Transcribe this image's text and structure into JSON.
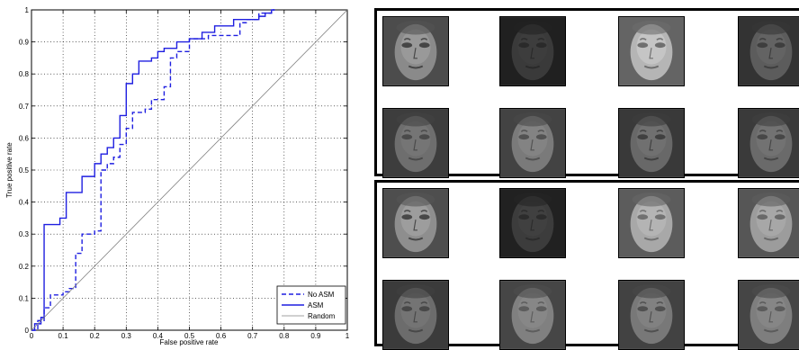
{
  "chart_data": {
    "type": "line",
    "title": "",
    "xlabel": "False positive rate",
    "ylabel": "True positive rate",
    "xlim": [
      0,
      1
    ],
    "ylim": [
      0,
      1
    ],
    "xticks": [
      "0",
      "0.1",
      "0.2",
      "0.3",
      "0.4",
      "0.5",
      "0.6",
      "0.7",
      "0.8",
      "0.9",
      "1"
    ],
    "yticks": [
      "0",
      "0.1",
      "0.2",
      "0.3",
      "0.4",
      "0.5",
      "0.6",
      "0.7",
      "0.8",
      "0.9",
      "1"
    ],
    "grid": true,
    "legend_position": "bottom-right",
    "series": [
      {
        "name": "No ASM",
        "color": "#1f1fe0",
        "style": "dashed",
        "x": [
          0,
          0.02,
          0.02,
          0.04,
          0.04,
          0.06,
          0.06,
          0.1,
          0.1,
          0.12,
          0.12,
          0.14,
          0.14,
          0.16,
          0.16,
          0.2,
          0.2,
          0.22,
          0.22,
          0.24,
          0.24,
          0.26,
          0.26,
          0.28,
          0.28,
          0.3,
          0.3,
          0.32,
          0.32,
          0.36,
          0.36,
          0.38,
          0.38,
          0.42,
          0.42,
          0.44,
          0.44,
          0.46,
          0.46,
          0.5,
          0.5,
          0.56,
          0.56,
          0.66,
          0.66,
          0.68,
          0.68,
          0.72,
          0.72,
          0.76,
          0.76,
          0.77
        ],
        "y": [
          0,
          0,
          0.03,
          0.03,
          0.07,
          0.07,
          0.11,
          0.11,
          0.12,
          0.12,
          0.13,
          0.13,
          0.24,
          0.24,
          0.3,
          0.3,
          0.31,
          0.31,
          0.5,
          0.5,
          0.52,
          0.52,
          0.54,
          0.54,
          0.58,
          0.58,
          0.63,
          0.63,
          0.68,
          0.68,
          0.69,
          0.69,
          0.72,
          0.72,
          0.76,
          0.76,
          0.85,
          0.85,
          0.87,
          0.87,
          0.91,
          0.91,
          0.92,
          0.92,
          0.96,
          0.96,
          0.97,
          0.97,
          0.99,
          0.99,
          1.0,
          1.0
        ]
      },
      {
        "name": "ASM",
        "color": "#1f1fe0",
        "style": "solid",
        "x": [
          0,
          0.01,
          0.01,
          0.03,
          0.03,
          0.04,
          0.04,
          0.09,
          0.09,
          0.11,
          0.11,
          0.16,
          0.16,
          0.2,
          0.2,
          0.22,
          0.22,
          0.24,
          0.24,
          0.26,
          0.26,
          0.28,
          0.28,
          0.3,
          0.3,
          0.32,
          0.32,
          0.34,
          0.34,
          0.38,
          0.38,
          0.4,
          0.4,
          0.42,
          0.42,
          0.46,
          0.46,
          0.5,
          0.5,
          0.54,
          0.54,
          0.58,
          0.58,
          0.64,
          0.64,
          0.72,
          0.72,
          0.74,
          0.74,
          0.76,
          0.76,
          0.77
        ],
        "y": [
          0,
          0,
          0.02,
          0.02,
          0.04,
          0.04,
          0.33,
          0.33,
          0.35,
          0.35,
          0.43,
          0.43,
          0.48,
          0.48,
          0.52,
          0.52,
          0.55,
          0.55,
          0.57,
          0.57,
          0.6,
          0.6,
          0.67,
          0.67,
          0.77,
          0.77,
          0.8,
          0.8,
          0.84,
          0.84,
          0.85,
          0.85,
          0.87,
          0.87,
          0.88,
          0.88,
          0.9,
          0.9,
          0.91,
          0.91,
          0.93,
          0.93,
          0.95,
          0.95,
          0.97,
          0.97,
          0.98,
          0.98,
          0.99,
          0.99,
          1.0,
          1.0
        ]
      },
      {
        "name": "Random",
        "color": "#808080",
        "style": "solid",
        "x": [
          0,
          1
        ],
        "y": [
          0,
          1
        ]
      }
    ]
  },
  "faces": {
    "top": [
      {
        "name": "face-mean",
        "tone": "#8a8a8a",
        "contrast": 0.9
      },
      {
        "name": "face-dark",
        "tone": "#3a3a3a",
        "contrast": 0.5
      },
      {
        "name": "face-light",
        "tone": "#b5b5b5",
        "contrast": 0.7
      },
      {
        "name": "face-gray",
        "tone": "#5c5c5c",
        "contrast": 0.6
      },
      {
        "name": "face-gray",
        "tone": "#6e6e6e",
        "contrast": 0.6
      },
      {
        "name": "face-gray",
        "tone": "#7a7a7a",
        "contrast": 0.6
      },
      {
        "name": "face-gray",
        "tone": "#686868",
        "contrast": 0.7
      },
      {
        "name": "face-gray",
        "tone": "#6a6a6a",
        "contrast": 0.6
      }
    ],
    "bottom": [
      {
        "name": "face-mean",
        "tone": "#8e8e8e",
        "contrast": 0.9
      },
      {
        "name": "face-dark",
        "tone": "#3c3c3c",
        "contrast": 0.5
      },
      {
        "name": "face-light",
        "tone": "#a8a8a8",
        "contrast": 0.6
      },
      {
        "name": "face-light",
        "tone": "#9c9c9c",
        "contrast": 0.6
      },
      {
        "name": "face-gray",
        "tone": "#6c6c6c",
        "contrast": 0.6
      },
      {
        "name": "face-gray",
        "tone": "#808080",
        "contrast": 0.5
      },
      {
        "name": "face-gray",
        "tone": "#787878",
        "contrast": 0.6
      },
      {
        "name": "face-gray",
        "tone": "#7e7e7e",
        "contrast": 0.5
      }
    ]
  }
}
